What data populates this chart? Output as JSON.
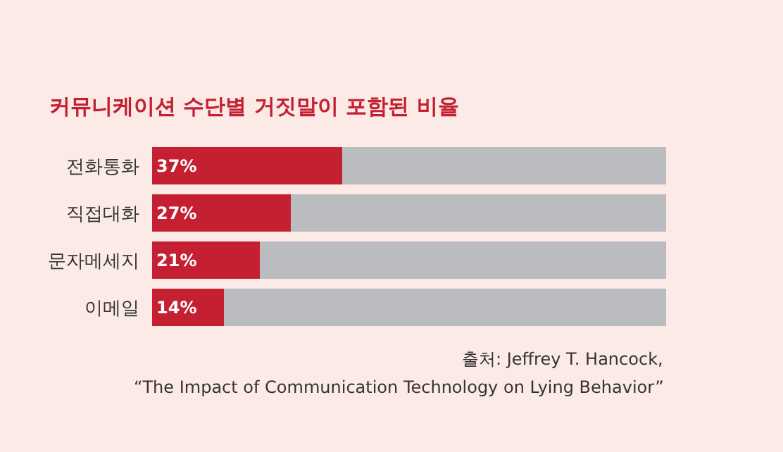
{
  "chart_data": {
    "type": "bar",
    "orientation": "horizontal",
    "stacked": true,
    "title": "커뮤니케이션 수단별 거짓말이 포함된 비율",
    "categories": [
      "전화통화",
      "직접대화",
      "문자메세지",
      "이메일"
    ],
    "series": [
      {
        "color": "#c52032",
        "values": [
          37,
          27,
          21,
          14
        ],
        "value_labels": [
          "37%",
          "27%",
          "21%",
          "14%"
        ]
      },
      {
        "color": "#bbbcc0",
        "values": [
          63,
          73,
          79,
          86
        ]
      }
    ],
    "xlim": [
      0,
      100
    ],
    "tick_labels": "y",
    "grid": false,
    "annotations": [
      "출처: Jeffrey T. Hancock,",
      "“The Impact of Communication Technology on Lying Behavior”"
    ]
  }
}
